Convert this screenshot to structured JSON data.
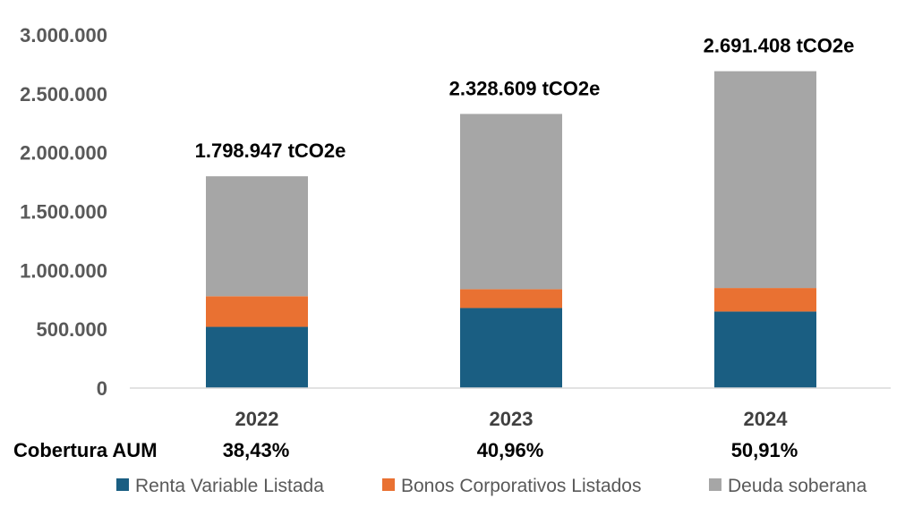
{
  "chart_data": {
    "type": "bar",
    "stacked": true,
    "categories": [
      "2022",
      "2023",
      "2024"
    ],
    "series": [
      {
        "name": "Renta Variable Listada",
        "color": "#1a5e82",
        "values": [
          520000,
          680000,
          650000
        ]
      },
      {
        "name": "Bonos Corporativos Listados",
        "color": "#e97132",
        "values": [
          260000,
          160000,
          200000
        ]
      },
      {
        "name": "Deuda soberana",
        "color": "#a6a6a6",
        "values": [
          1018947,
          1488609,
          1841408
        ]
      }
    ],
    "totals": [
      "1.798.947 tCO2e",
      "2.328.609 tCO2e",
      "2.691.408 tCO2e"
    ],
    "ylim": [
      0,
      3000000
    ],
    "yticks": [
      {
        "value": 0,
        "label": "0"
      },
      {
        "value": 500000,
        "label": "500.000"
      },
      {
        "value": 1000000,
        "label": "1.000.000"
      },
      {
        "value": 1500000,
        "label": "1.500.000"
      },
      {
        "value": 2000000,
        "label": "2.000.000"
      },
      {
        "value": 2500000,
        "label": "2.500.000"
      },
      {
        "value": 3000000,
        "label": "3.000.000"
      }
    ],
    "coverage_label": "Cobertura AUM",
    "coverage": [
      "38,43%",
      "40,96%",
      "50,91%"
    ],
    "grid": false,
    "legend_position": "bottom"
  }
}
